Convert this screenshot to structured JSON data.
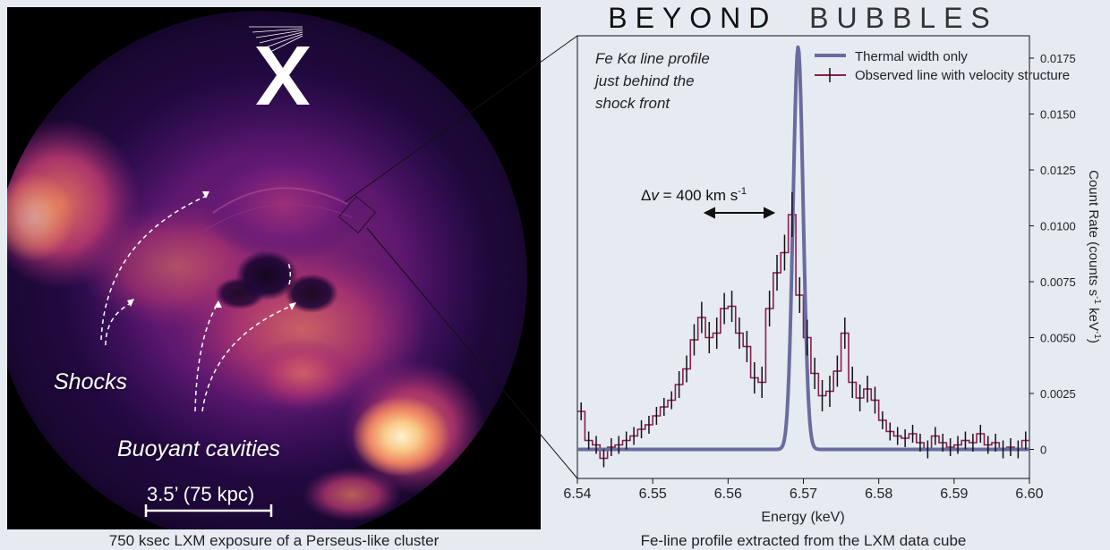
{
  "title": {
    "word1": "BEYOND",
    "word2": "BUBBLES"
  },
  "image_panel": {
    "labels": {
      "shocks": "Shocks",
      "cavities": "Buoyant cavities"
    },
    "scale_bar": "3.5’ (75 kpc)",
    "caption": "750 ksec LXM exposure of a Perseus-like cluster",
    "logo": "X"
  },
  "chart_panel": {
    "caption": "Fe-line profile extracted from the LXM data cube"
  },
  "colors": {
    "thermal": "#6a6b9e",
    "observed_low": "#8c1b4f",
    "observed_high": "#3a2f6e",
    "errorbar": "#111111",
    "background": "#e6ebf2"
  },
  "chart_data": {
    "type": "line",
    "annotation": {
      "line1": "Fe Kα line profile",
      "line2": "just behind the",
      "line3": "shock front",
      "dv_prefix": "Δ",
      "dv_var": "v",
      "dv_text": " = 400 km s",
      "dv_sup": "-1"
    },
    "xlabel": "Energy (keV)",
    "ylabel": "Count Rate (counts s",
    "ylabel_sup1": "-1",
    "ylabel_mid": " keV",
    "ylabel_sup2": "-1",
    "ylabel_end": ")",
    "xlim": [
      6.54,
      6.6
    ],
    "ylim": [
      -0.0013,
      0.0185
    ],
    "x_ticks": [
      6.54,
      6.55,
      6.56,
      6.57,
      6.58,
      6.59,
      6.6
    ],
    "x_tick_labels": [
      "6.54",
      "6.55",
      "6.56",
      "6.57",
      "6.58",
      "6.59",
      "6.60"
    ],
    "y_ticks": [
      0,
      0.0025,
      0.005,
      0.0075,
      0.01,
      0.0125,
      0.015,
      0.0175
    ],
    "y_tick_labels": [
      "0",
      "0.0025",
      "0.0050",
      "0.0075",
      "0.0100",
      "0.0125",
      "0.0150",
      "0.0175"
    ],
    "legend_position": "top-right",
    "series": [
      {
        "name": "Thermal width only",
        "style": "smooth",
        "center": 6.5693,
        "sigma": 0.00067,
        "amplitude": 0.018
      },
      {
        "name": "Observed line with velocity structure",
        "style": "step",
        "bin_width": 0.001,
        "x": [
          6.54,
          6.541,
          6.542,
          6.543,
          6.544,
          6.545,
          6.546,
          6.547,
          6.548,
          6.549,
          6.55,
          6.551,
          6.552,
          6.553,
          6.554,
          6.555,
          6.556,
          6.557,
          6.558,
          6.559,
          6.56,
          6.561,
          6.562,
          6.563,
          6.564,
          6.565,
          6.566,
          6.567,
          6.568,
          6.569,
          6.57,
          6.571,
          6.572,
          6.573,
          6.574,
          6.575,
          6.576,
          6.577,
          6.578,
          6.579,
          6.58,
          6.581,
          6.582,
          6.583,
          6.584,
          6.585,
          6.586,
          6.587,
          6.588,
          6.589,
          6.59,
          6.591,
          6.592,
          6.593,
          6.594,
          6.595,
          6.596,
          6.597,
          6.598,
          6.599
        ],
        "y": [
          0.0017,
          0.0004,
          0.0002,
          -0.0004,
          0.0001,
          0.0002,
          0.0004,
          0.0006,
          0.0009,
          0.0011,
          0.0015,
          0.0019,
          0.0022,
          0.0029,
          0.0036,
          0.0049,
          0.0059,
          0.005,
          0.0052,
          0.0063,
          0.0064,
          0.0052,
          0.0046,
          0.0032,
          0.003,
          0.0063,
          0.0079,
          0.0088,
          0.0105,
          0.0069,
          0.005,
          0.0034,
          0.0024,
          0.0026,
          0.0035,
          0.0052,
          0.003,
          0.0023,
          0.0027,
          0.0022,
          0.0013,
          0.0008,
          0.0006,
          0.0005,
          0.0007,
          0.0003,
          0.0,
          0.0006,
          0.0003,
          0.0001,
          0.0002,
          0.0004,
          0.0003,
          0.0007,
          0.0002,
          0.0003,
          0.0,
          0.0001,
          0.0,
          0.0004
        ],
        "err": [
          0.0004,
          0.0004,
          0.0004,
          0.0004,
          0.0004,
          0.0004,
          0.0004,
          0.0004,
          0.0004,
          0.0004,
          0.0004,
          0.0004,
          0.0004,
          0.0006,
          0.0006,
          0.0007,
          0.0007,
          0.0007,
          0.0007,
          0.0007,
          0.0007,
          0.0007,
          0.0007,
          0.0007,
          0.0007,
          0.0008,
          0.0008,
          0.0008,
          0.001,
          0.0008,
          0.0008,
          0.0007,
          0.0007,
          0.0007,
          0.0007,
          0.0007,
          0.0007,
          0.0006,
          0.0006,
          0.0006,
          0.0004,
          0.0004,
          0.0004,
          0.0004,
          0.0004,
          0.0004,
          0.0004,
          0.0004,
          0.0004,
          0.0004,
          0.0004,
          0.0004,
          0.0004,
          0.0004,
          0.0004,
          0.0004,
          0.0004,
          0.0004,
          0.0004,
          0.0004
        ]
      }
    ]
  }
}
